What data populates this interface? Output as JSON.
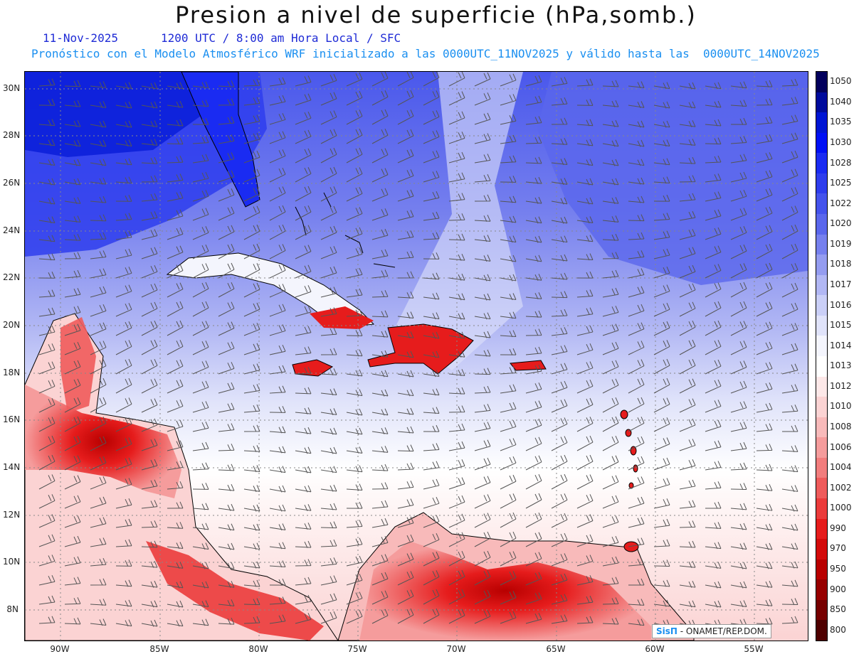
{
  "header": {
    "title": "Presion a nivel de superficie (hPa,somb.)",
    "date": "11-Nov-2025",
    "time_line": "1200 UTC / 8:00 am Hora Local / SFC",
    "model_line": "Pronóstico con el Modelo Atmosférico WRF inicializado a las 0000UTC_11NOV2025 y válido hasta las  0000UTC_14NOV2025"
  },
  "axes": {
    "lat_labels": [
      "30N",
      "28N",
      "26N",
      "24N",
      "22N",
      "20N",
      "18N",
      "16N",
      "14N",
      "12N",
      "10N",
      "8N"
    ],
    "lon_labels": [
      "90W",
      "85W",
      "80W",
      "75W",
      "70W",
      "65W",
      "60W",
      "55W"
    ]
  },
  "colorbar": {
    "levels": [
      "1050",
      "1040",
      "1035",
      "1030",
      "1028",
      "1025",
      "1022",
      "1020",
      "1019",
      "1018",
      "1017",
      "1016",
      "1015",
      "1014",
      "1013",
      "1012",
      "1010",
      "1008",
      "1006",
      "1004",
      "1002",
      "1000",
      "990",
      "970",
      "950",
      "900",
      "850",
      "800"
    ],
    "colors": [
      "#02005c",
      "#000b9c",
      "#0015d4",
      "#0010f5",
      "#1a2bf2",
      "#2e3ded",
      "#4453ec",
      "#5a67ec",
      "#7680ee",
      "#949cf0",
      "#b1b7f4",
      "#cacff7",
      "#e0e3fa",
      "#f4f5fd",
      "#ffffff",
      "#fde8e8",
      "#fbd3d3",
      "#f8baba",
      "#f59c9c",
      "#f27d7d",
      "#ef5b5b",
      "#eb3b3b",
      "#e61c1c",
      "#d30a0a",
      "#b80000",
      "#970000",
      "#760000",
      "#4e0000"
    ]
  },
  "credit": {
    "logo": "SisΠ",
    "text": " - ONAMET/REP.DOM."
  },
  "map_layers": {
    "background_pressure_hPa": "1014",
    "high_pressure_region": "1028",
    "low_pressure_land": "1004"
  }
}
